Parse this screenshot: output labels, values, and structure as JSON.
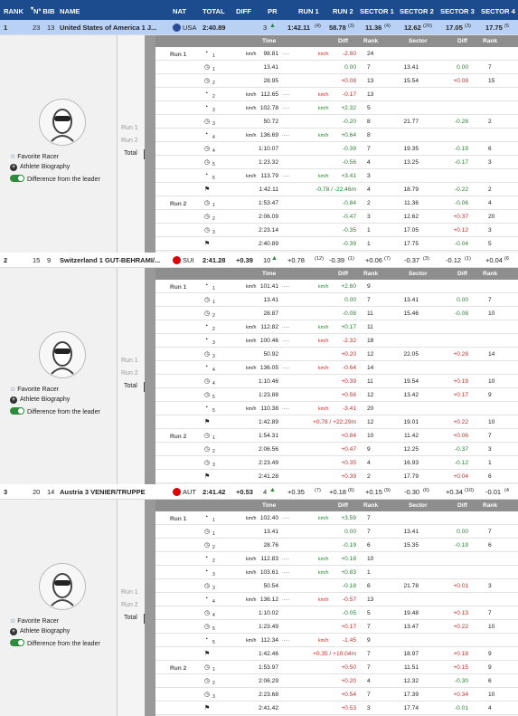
{
  "columns": {
    "rank": "RANK",
    "bib": "Nº BIB",
    "name": "NAME",
    "nat": "NAT",
    "total": "TOTAL",
    "diff": "DIFF",
    "pr": "PR",
    "run1": "RUN 1",
    "run2": "RUN 2",
    "s1": "SECTOR 1",
    "s2": "SECTOR 2",
    "s3": "SECTOR 3",
    "s4": "SECTOR 4"
  },
  "detail_headers": {
    "time": "Time",
    "diff": "Diff",
    "rank": "Rank",
    "sector": "Sector",
    "diff2": "Diff",
    "rank2": "Rank"
  },
  "side": {
    "run1": "Run 1",
    "run2": "Run 2",
    "total": "Total"
  },
  "options": {
    "fav": "Favorite Racer",
    "bio": "Athlete Biography",
    "diff": "Difference from the leader"
  },
  "teams": [
    {
      "rank": "1",
      "bib": "23",
      "no": "13",
      "name": "United States of America 1 J...",
      "nat": "USA",
      "total": "2:40.89",
      "diff": "",
      "pr": "3",
      "run1": "1:42.11",
      "run1r": "(4)",
      "run2": "58.78",
      "run2r": "(3)",
      "s1": "11.36",
      "s1r": "(4)",
      "s2": "12.62",
      "s2r": "(20)",
      "s3": "17.05",
      "s3r": "(3)",
      "s4": "17.75",
      "s4r": "(5",
      "rows": [
        {
          "icon": "i",
          "sub": "1",
          "kmh": "km/h",
          "time": "98.81",
          "diff": "-2.60",
          "dk": "km/h",
          "dc": "r",
          "rank": "24"
        },
        {
          "icon": "t",
          "sub": "1",
          "time": "13.41",
          "diff": "0.00",
          "dc": "g",
          "rank": "7",
          "sec": "13.41",
          "sdiff": "0.00",
          "sc": "g",
          "srank": "7"
        },
        {
          "icon": "t",
          "sub": "2",
          "time": "28.95",
          "diff": "+0.08",
          "dc": "r",
          "rank": "13",
          "sec": "15.54",
          "sdiff": "+0.08",
          "sc": "r",
          "srank": "15"
        },
        {
          "icon": "i",
          "sub": "2",
          "kmh": "km/h",
          "time": "112.65",
          "diff": "-0.17",
          "dk": "km/h",
          "dc": "r",
          "rank": "13"
        },
        {
          "icon": "i",
          "sub": "3",
          "kmh": "km/h",
          "time": "102.78",
          "diff": "+2.32",
          "dk": "km/h",
          "dc": "g",
          "rank": "5"
        },
        {
          "icon": "t",
          "sub": "3",
          "time": "50.72",
          "diff": "-0.20",
          "dc": "g",
          "rank": "8",
          "sec": "21.77",
          "sdiff": "-0.28",
          "sc": "g",
          "srank": "2"
        },
        {
          "icon": "i",
          "sub": "4",
          "kmh": "km/h",
          "time": "136.69",
          "diff": "+0.64",
          "dk": "km/h",
          "dc": "g",
          "rank": "8"
        },
        {
          "icon": "t",
          "sub": "4",
          "time": "1:10.07",
          "diff": "-0.39",
          "dc": "g",
          "rank": "7",
          "sec": "19.35",
          "sdiff": "-0.19",
          "sc": "g",
          "srank": "6"
        },
        {
          "icon": "t",
          "sub": "5",
          "time": "1:23.32",
          "diff": "-0.56",
          "dc": "g",
          "rank": "4",
          "sec": "13.25",
          "sdiff": "-0.17",
          "sc": "g",
          "srank": "3"
        },
        {
          "icon": "i",
          "sub": "5",
          "kmh": "km/h",
          "time": "113.79",
          "diff": "+3.41",
          "dk": "km/h",
          "dc": "g",
          "rank": "3"
        },
        {
          "icon": "f",
          "time": "1:42.11",
          "diff": "-0.78 / -22.46m",
          "dc": "g",
          "rank": "4",
          "sec": "18.79",
          "sdiff": "-0.22",
          "sc": "g",
          "srank": "2"
        },
        {
          "icon": "t",
          "sub": "1",
          "time": "1:53.47",
          "diff": "-0.84",
          "dc": "g",
          "rank": "2",
          "sec": "11.36",
          "sdiff": "-0.06",
          "sc": "g",
          "srank": "4",
          "run2": true
        },
        {
          "icon": "t",
          "sub": "2",
          "time": "2:06.09",
          "diff": "-0.47",
          "dc": "g",
          "rank": "3",
          "sec": "12.62",
          "sdiff": "+0.37",
          "sc": "r",
          "srank": "20"
        },
        {
          "icon": "t",
          "sub": "3",
          "time": "2:23.14",
          "diff": "-0.35",
          "dc": "g",
          "rank": "1",
          "sec": "17.05",
          "sdiff": "+0.12",
          "sc": "r",
          "srank": "3"
        },
        {
          "icon": "f",
          "time": "2:40.89",
          "diff": "-0.39",
          "dc": "g",
          "rank": "1",
          "sec": "17.75",
          "sdiff": "-0.04",
          "sc": "g",
          "srank": "5"
        }
      ]
    },
    {
      "rank": "2",
      "bib": "15",
      "no": "9",
      "name": "Switzerland 1 GUT-BEHRAMI/...",
      "nat": "SUI",
      "total": "2:41.28",
      "diff": "+0.39",
      "pr": "10",
      "run1": "+0.78",
      "run1r": "(12)",
      "run2": "-0.39",
      "run2r": "(1)",
      "s1": "+0.06",
      "s1r": "(7)",
      "s2": "-0.37",
      "s2r": "(3)",
      "s3": "-0.12",
      "s3r": "(1)",
      "s4": "+0.04",
      "s4r": "(6",
      "rows": [
        {
          "icon": "i",
          "sub": "1",
          "kmh": "km/h",
          "time": "101.41",
          "diff": "+2.60",
          "dk": "km/h",
          "dc": "g",
          "rank": "9"
        },
        {
          "icon": "t",
          "sub": "1",
          "time": "13.41",
          "diff": "0.00",
          "dc": "g",
          "rank": "7",
          "sec": "13.41",
          "sdiff": "0.00",
          "sc": "g",
          "srank": "7"
        },
        {
          "icon": "t",
          "sub": "2",
          "time": "28.87",
          "diff": "-0.08",
          "dc": "g",
          "rank": "11",
          "sec": "15.46",
          "sdiff": "-0.08",
          "sc": "g",
          "srank": "10"
        },
        {
          "icon": "i",
          "sub": "2",
          "kmh": "km/h",
          "time": "112.82",
          "diff": "+0.17",
          "dk": "km/h",
          "dc": "g",
          "rank": "11"
        },
        {
          "icon": "i",
          "sub": "3",
          "kmh": "km/h",
          "time": "100.46",
          "diff": "-2.32",
          "dk": "km/h",
          "dc": "r",
          "rank": "18"
        },
        {
          "icon": "t",
          "sub": "3",
          "time": "50.92",
          "diff": "+0.20",
          "dc": "r",
          "rank": "12",
          "sec": "22.05",
          "sdiff": "+0.28",
          "sc": "r",
          "srank": "14"
        },
        {
          "icon": "i",
          "sub": "4",
          "kmh": "km/h",
          "time": "136.05",
          "diff": "-0.64",
          "dk": "km/h",
          "dc": "r",
          "rank": "14"
        },
        {
          "icon": "t",
          "sub": "4",
          "time": "1:10.46",
          "diff": "+0.39",
          "dc": "r",
          "rank": "11",
          "sec": "19.54",
          "sdiff": "+0.19",
          "sc": "r",
          "srank": "10"
        },
        {
          "icon": "t",
          "sub": "5",
          "time": "1:23.88",
          "diff": "+0.56",
          "dc": "r",
          "rank": "12",
          "sec": "13.42",
          "sdiff": "+0.17",
          "sc": "r",
          "srank": "9"
        },
        {
          "icon": "i",
          "sub": "5",
          "kmh": "km/h",
          "time": "110.38",
          "diff": "-3.41",
          "dk": "km/h",
          "dc": "r",
          "rank": "20"
        },
        {
          "icon": "f",
          "time": "1:42.89",
          "diff": "+0.78 / +22.29m",
          "dc": "r",
          "rank": "12",
          "sec": "19.01",
          "sdiff": "+0.22",
          "sc": "r",
          "srank": "10"
        },
        {
          "icon": "t",
          "sub": "1",
          "time": "1:54.31",
          "diff": "+0.84",
          "dc": "r",
          "rank": "10",
          "sec": "11.42",
          "sdiff": "+0.06",
          "sc": "r",
          "srank": "7",
          "run2": true
        },
        {
          "icon": "t",
          "sub": "2",
          "time": "2:06.56",
          "diff": "+0.47",
          "dc": "r",
          "rank": "9",
          "sec": "12.25",
          "sdiff": "-0.37",
          "sc": "g",
          "srank": "3"
        },
        {
          "icon": "t",
          "sub": "3",
          "time": "2:23.49",
          "diff": "+0.35",
          "dc": "r",
          "rank": "4",
          "sec": "16.93",
          "sdiff": "-0.12",
          "sc": "g",
          "srank": "1"
        },
        {
          "icon": "f",
          "time": "2:41.28",
          "diff": "+0.39",
          "dc": "r",
          "rank": "2",
          "sec": "17.79",
          "sdiff": "+0.04",
          "sc": "r",
          "srank": "6"
        }
      ]
    },
    {
      "rank": "3",
      "bib": "20",
      "no": "14",
      "name": "Austria 3 VENIER/TRUPPE",
      "nat": "AUT",
      "total": "2:41.42",
      "diff": "+0.53",
      "pr": "4",
      "run1": "+0.35",
      "run1r": "(7)",
      "run2": "+0.18",
      "run2r": "(6)",
      "s1": "+0.15",
      "s1r": "(9)",
      "s2": "-0.30",
      "s2r": "(6)",
      "s3": "+0.34",
      "s3r": "(10)",
      "s4": "-0.01",
      "s4r": "(4",
      "rows": [
        {
          "icon": "i",
          "sub": "1",
          "kmh": "km/h",
          "time": "102.40",
          "diff": "+3.59",
          "dk": "km/h",
          "dc": "g",
          "rank": "7"
        },
        {
          "icon": "t",
          "sub": "1",
          "time": "13.41",
          "diff": "0.00",
          "dc": "g",
          "rank": "7",
          "sec": "13.41",
          "sdiff": "0.00",
          "sc": "g",
          "srank": "7"
        },
        {
          "icon": "t",
          "sub": "2",
          "time": "28.76",
          "diff": "-0.19",
          "dc": "g",
          "rank": "6",
          "sec": "15.35",
          "sdiff": "-0.19",
          "sc": "g",
          "srank": "6"
        },
        {
          "icon": "i",
          "sub": "2",
          "kmh": "km/h",
          "time": "112.83",
          "diff": "+0.18",
          "dk": "km/h",
          "dc": "g",
          "rank": "10"
        },
        {
          "icon": "i",
          "sub": "3",
          "kmh": "km/h",
          "time": "103.61",
          "diff": "+0.83",
          "dk": "km/h",
          "dc": "g",
          "rank": "1"
        },
        {
          "icon": "t",
          "sub": "3",
          "time": "50.54",
          "diff": "-0.18",
          "dc": "g",
          "rank": "6",
          "sec": "21.78",
          "sdiff": "+0.01",
          "sc": "r",
          "srank": "3"
        },
        {
          "icon": "i",
          "sub": "4",
          "kmh": "km/h",
          "time": "136.12",
          "diff": "-0.57",
          "dk": "km/h",
          "dc": "r",
          "rank": "13"
        },
        {
          "icon": "t",
          "sub": "4",
          "time": "1:10.02",
          "diff": "-0.05",
          "dc": "g",
          "rank": "5",
          "sec": "19.48",
          "sdiff": "+0.13",
          "sc": "r",
          "srank": "7"
        },
        {
          "icon": "t",
          "sub": "5",
          "time": "1:23.49",
          "diff": "+0.17",
          "dc": "r",
          "rank": "7",
          "sec": "13.47",
          "sdiff": "+0.22",
          "sc": "r",
          "srank": "10"
        },
        {
          "icon": "i",
          "sub": "5",
          "kmh": "km/h",
          "time": "112.34",
          "diff": "-1.45",
          "dk": "km/h",
          "dc": "r",
          "rank": "9"
        },
        {
          "icon": "f",
          "time": "1:42.46",
          "diff": "+0.35 / +10.04m",
          "dc": "r",
          "rank": "7",
          "sec": "18.97",
          "sdiff": "+0.18",
          "sc": "r",
          "srank": "9"
        },
        {
          "icon": "t",
          "sub": "1",
          "time": "1:53.97",
          "diff": "+0.50",
          "dc": "r",
          "rank": "7",
          "sec": "11.51",
          "sdiff": "+0.15",
          "sc": "r",
          "srank": "9",
          "run2": true
        },
        {
          "icon": "t",
          "sub": "2",
          "time": "2:06.29",
          "diff": "+0.20",
          "dc": "r",
          "rank": "4",
          "sec": "12.32",
          "sdiff": "-0.30",
          "sc": "g",
          "srank": "6"
        },
        {
          "icon": "t",
          "sub": "3",
          "time": "2:23.68",
          "diff": "+0.54",
          "dc": "r",
          "rank": "7",
          "sec": "17.39",
          "sdiff": "+0.34",
          "sc": "r",
          "srank": "10"
        },
        {
          "icon": "f",
          "time": "2:41.42",
          "diff": "+0.53",
          "dc": "r",
          "rank": "3",
          "sec": "17.74",
          "sdiff": "-0.01",
          "sc": "g",
          "srank": "4"
        }
      ]
    }
  ]
}
